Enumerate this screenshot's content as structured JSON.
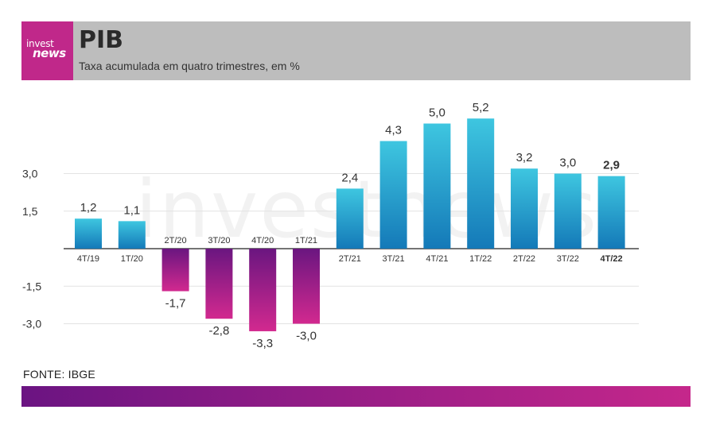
{
  "brand": {
    "line1": "invest",
    "line2": "news"
  },
  "header": {
    "title": "PIB",
    "subtitle": "Taxa acumulada em quatro trimestres, em %"
  },
  "source": "FONTE: IBGE",
  "watermark": "investnews",
  "colors": {
    "positive_top": "#3ec6e0",
    "positive_bottom": "#1479b8",
    "negative_top": "#6a1680",
    "negative_bottom": "#d2298f",
    "brand": "#c0288a"
  },
  "chart_data": {
    "type": "bar",
    "title": "PIB",
    "subtitle": "Taxa acumulada em quatro trimestres, em %",
    "xlabel": "",
    "ylabel": "",
    "categories": [
      "4T/19",
      "1T/20",
      "2T/20",
      "3T/20",
      "4T/20",
      "1T/21",
      "2T/21",
      "3T/21",
      "4T/21",
      "1T/22",
      "2T/22",
      "3T/22",
      "4T/22"
    ],
    "values": [
      1.2,
      1.1,
      -1.7,
      -2.8,
      -3.3,
      -3.0,
      2.4,
      4.3,
      5.0,
      5.2,
      3.2,
      3.0,
      2.9
    ],
    "value_labels": [
      "1,2",
      "1,1",
      "-1,7",
      "-2,8",
      "-3,3",
      "-3,0",
      "2,4",
      "4,3",
      "5,0",
      "5,2",
      "3,2",
      "3,0",
      "2,9"
    ],
    "highlight_index": 12,
    "yticks": [
      3.0,
      1.5,
      -1.5,
      -3.0
    ],
    "ytick_labels": [
      "3,0",
      "1,5",
      "-1,5",
      "-3,0"
    ],
    "ylim": [
      -3.6,
      5.5
    ],
    "grid": true,
    "legend": "none"
  }
}
